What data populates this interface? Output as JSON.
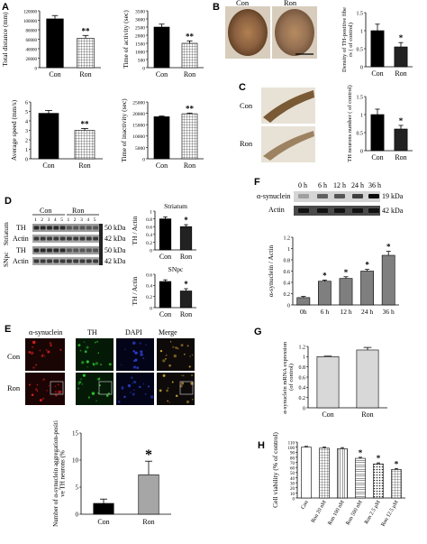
{
  "panels": {
    "A": {
      "letter": "A",
      "charts": [
        {
          "ylabel": "Total distance (mm)",
          "yticks": [
            "0",
            "20000",
            "40000",
            "60000",
            "80000",
            "100000",
            "120000"
          ],
          "ymax": 120000,
          "categories": [
            "Con",
            "Ron"
          ],
          "values": [
            103000,
            62000
          ],
          "err": [
            7000,
            6000
          ],
          "sig": "**"
        },
        {
          "ylabel": "Time of activity (sec)",
          "yticks": [
            "0",
            "500",
            "1000",
            "1500",
            "2000",
            "2500",
            "3000",
            "3500"
          ],
          "ymax": 3500,
          "categories": [
            "Con",
            "Ron"
          ],
          "values": [
            2500,
            1500
          ],
          "err": [
            180,
            150
          ],
          "sig": "**"
        },
        {
          "ylabel": "Average speed (mm/s)",
          "yticks": [
            "0",
            "1",
            "2",
            "3",
            "4",
            "5",
            "6"
          ],
          "ymax": 6,
          "categories": [
            "Con",
            "Ron"
          ],
          "values": [
            4.8,
            3.0
          ],
          "err": [
            0.3,
            0.2
          ],
          "sig": "**"
        },
        {
          "ylabel": "Time of inactivity (sec)",
          "yticks": [
            "0",
            "5000",
            "10000",
            "15000",
            "20000",
            "25000"
          ],
          "ymax": 25000,
          "categories": [
            "Con",
            "Ron"
          ],
          "values": [
            18500,
            19800
          ],
          "err": [
            300,
            300
          ],
          "sig": "**"
        }
      ]
    },
    "B": {
      "letter": "B",
      "img_labels": [
        "Con",
        "Ron"
      ],
      "chart": {
        "ylabel": "Density of TH-positive fibers ( of control)",
        "yticks": [
          "0",
          "0.5",
          "1",
          "1.5"
        ],
        "ymax": 1.5,
        "categories": [
          "Con",
          "Ron"
        ],
        "values": [
          1.0,
          0.55
        ],
        "err": [
          0.18,
          0.12
        ],
        "sig": "*"
      }
    },
    "C": {
      "letter": "C",
      "img_labels": [
        "Con",
        "Ron"
      ],
      "chart": {
        "ylabel": "TH neurons number ( of control)",
        "yticks": [
          "0",
          "0.5",
          "1",
          "1.5"
        ],
        "ymax": 1.5,
        "categories": [
          "Con",
          "Ron"
        ],
        "values": [
          1.0,
          0.6
        ],
        "err": [
          0.15,
          0.1
        ],
        "sig": "*"
      }
    },
    "D": {
      "letter": "D",
      "blot_groups": [
        "Con",
        "Ron"
      ],
      "lanes": [
        "1",
        "2",
        "3",
        "4",
        "5",
        "1",
        "2",
        "3",
        "4",
        "5"
      ],
      "region_labels": [
        "Striatum",
        "SNpc"
      ],
      "row_labels": [
        "TH",
        "Actin",
        "TH",
        "Actin"
      ],
      "kda": [
        "50 kDa",
        "42 kDa",
        "50 kDa",
        "42 kDa"
      ],
      "charts": [
        {
          "title": "Striatum",
          "ylabel": "TH / Actin",
          "yticks": [
            "0",
            "0.2",
            "0.4",
            "0.6",
            "0.8",
            "1"
          ],
          "ymax": 1,
          "categories": [
            "Con",
            "Ron"
          ],
          "values": [
            0.8,
            0.6
          ],
          "err": [
            0.05,
            0.05
          ],
          "sig": "*"
        },
        {
          "title": "SNpc",
          "ylabel": "TH / Actin",
          "yticks": [
            "0",
            "0.2",
            "0.4",
            "0.6"
          ],
          "ymax": 0.6,
          "categories": [
            "Con",
            "Ron"
          ],
          "values": [
            0.47,
            0.3
          ],
          "err": [
            0.03,
            0.04
          ],
          "sig": "*"
        }
      ]
    },
    "E": {
      "letter": "E",
      "col_labels": [
        "α-synuclein",
        "TH",
        "DAPI",
        "Merge"
      ],
      "row_labels": [
        "Con",
        "Ron"
      ],
      "chart": {
        "ylabel": "Number of α-synuclein aggregation-positive TH neurons (%)",
        "yticks": [
          "0",
          "5",
          "10",
          "15"
        ],
        "ymax": 15,
        "categories": [
          "Con",
          "Ron"
        ],
        "values": [
          2.0,
          7.3
        ],
        "err": [
          0.8,
          2.5
        ],
        "sig": "*",
        "colors": [
          "#000000",
          "#a6a6a6"
        ]
      }
    },
    "F": {
      "letter": "F",
      "timepoints": [
        "0 h",
        "6 h",
        "12 h",
        "24 h",
        "36 h"
      ],
      "row_labels": [
        "α-synuclein",
        "Actin"
      ],
      "kda": [
        "19 kDa",
        "42 kDa"
      ],
      "chart": {
        "ylabel": "α-synuclein / Actin",
        "yticks": [
          "0",
          "0.2",
          "0.4",
          "0.6",
          "0.8",
          "1",
          "1.2"
        ],
        "ymax": 1.2,
        "categories": [
          "0h",
          "6 h",
          "12 h",
          "24 h",
          "36 h"
        ],
        "values": [
          0.13,
          0.42,
          0.47,
          0.6,
          0.88
        ],
        "err": [
          0.02,
          0.02,
          0.03,
          0.03,
          0.07
        ],
        "sig": [
          "",
          "*",
          "*",
          "*",
          "*"
        ]
      }
    },
    "G": {
      "letter": "G",
      "chart": {
        "ylabel": "α-synuclein mRNA expression (of control)",
        "yticks": [
          "0",
          "0.2",
          "0.4",
          "0.6",
          "0.8",
          "1",
          "1.2"
        ],
        "ymax": 1.2,
        "categories": [
          "Con",
          "Ron"
        ],
        "values": [
          1.0,
          1.13
        ],
        "err": [
          0.01,
          0.05
        ],
        "sig": ""
      }
    },
    "H": {
      "letter": "H",
      "chart": {
        "ylabel": "Cell viability (% of control)",
        "yticks": [
          "0",
          "10",
          "20",
          "30",
          "40",
          "50",
          "60",
          "70",
          "80",
          "90",
          "100",
          "110"
        ],
        "ymax": 110,
        "categories": [
          "Con",
          "Ron 20 nM",
          "Ron 100 nM",
          "Ron 500 nM",
          "Ron 2.5 μM",
          "Ron 12.5 μM"
        ],
        "values": [
          100,
          98,
          97,
          78,
          67,
          56
        ],
        "err": [
          1.5,
          2,
          2,
          2,
          2,
          2
        ],
        "sig": [
          "",
          "",
          "",
          "*",
          "*",
          "*"
        ]
      }
    }
  },
  "colors": {
    "bar_dark": "#000000",
    "bar_light": "#bdbdbd",
    "tissue_brown": "#8a6a45"
  }
}
